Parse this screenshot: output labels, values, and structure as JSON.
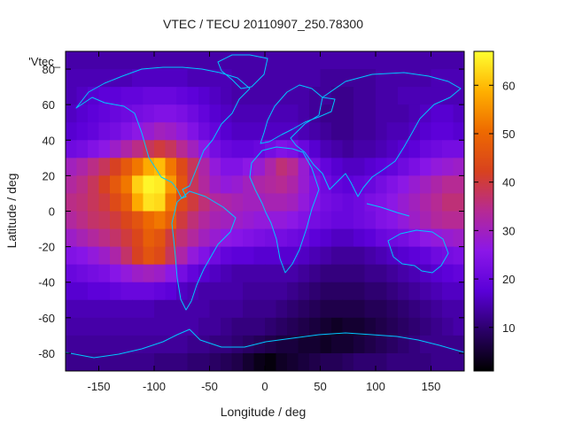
{
  "chart_data": {
    "type": "heatmap",
    "title": "VTEC / TECU 20110907_250.78300",
    "key_label": "'Vtec_",
    "xlabel": "Longitude / deg",
    "ylabel": "Latitude / deg",
    "xlim": [
      -180,
      180
    ],
    "ylim": [
      -90,
      90
    ],
    "xticks": [
      -150,
      -100,
      -50,
      0,
      50,
      100,
      150
    ],
    "yticks": [
      -80,
      -60,
      -40,
      -20,
      0,
      20,
      40,
      60,
      80
    ],
    "colorbar": {
      "range": [
        1,
        67
      ],
      "ticks": [
        10,
        20,
        30,
        40,
        50,
        60
      ],
      "colormap": [
        "#000000",
        "#2a0066",
        "#5a00d8",
        "#8b17e8",
        "#b62a94",
        "#d8421e",
        "#ee6a00",
        "#ffb000",
        "#ffff30"
      ]
    },
    "grid": {
      "lon_step": 10,
      "lat_step": 10,
      "longitudes": [
        -175,
        -165,
        -155,
        -145,
        -135,
        -125,
        -115,
        -105,
        -95,
        -85,
        -75,
        -65,
        -55,
        -45,
        -35,
        -25,
        -15,
        -5,
        5,
        15,
        25,
        35,
        45,
        55,
        65,
        75,
        85,
        95,
        105,
        115,
        125,
        135,
        145,
        155,
        165,
        175
      ],
      "latitudes": [
        85,
        75,
        65,
        55,
        45,
        35,
        25,
        15,
        5,
        -5,
        -15,
        -25,
        -35,
        -45,
        -55,
        -65,
        -75,
        -85
      ],
      "values": [
        [
          14,
          14,
          14,
          14,
          14,
          14,
          14,
          14,
          14,
          14,
          14,
          14,
          14,
          14,
          14,
          14,
          14,
          14,
          14,
          14,
          14,
          14,
          14,
          14,
          14,
          14,
          14,
          14,
          14,
          14,
          14,
          14,
          14,
          14,
          14,
          14
        ],
        [
          15,
          15,
          15,
          15,
          15,
          15,
          16,
          16,
          16,
          16,
          16,
          15,
          15,
          15,
          15,
          14,
          14,
          14,
          14,
          14,
          14,
          14,
          14,
          13,
          13,
          13,
          13,
          13,
          14,
          14,
          14,
          14,
          14,
          15,
          15,
          15
        ],
        [
          15,
          16,
          17,
          18,
          18,
          19,
          19,
          20,
          20,
          20,
          19,
          18,
          17,
          16,
          15,
          14,
          14,
          14,
          14,
          14,
          14,
          14,
          13,
          13,
          12,
          12,
          13,
          13,
          14,
          14,
          15,
          15,
          15,
          15,
          15,
          15
        ],
        [
          16,
          17,
          18,
          19,
          20,
          21,
          22,
          23,
          24,
          24,
          23,
          21,
          19,
          17,
          16,
          15,
          15,
          15,
          15,
          15,
          15,
          14,
          13,
          12,
          12,
          12,
          13,
          13,
          14,
          14,
          14,
          15,
          16,
          17,
          17,
          16
        ],
        [
          17,
          18,
          19,
          21,
          22,
          24,
          26,
          28,
          30,
          29,
          27,
          24,
          21,
          19,
          17,
          16,
          16,
          16,
          16,
          16,
          16,
          15,
          14,
          13,
          12,
          12,
          13,
          13,
          14,
          15,
          15,
          16,
          17,
          18,
          18,
          17
        ],
        [
          21,
          22,
          24,
          26,
          29,
          32,
          35,
          38,
          40,
          38,
          34,
          30,
          26,
          22,
          20,
          19,
          19,
          20,
          22,
          24,
          23,
          20,
          17,
          15,
          14,
          13,
          14,
          14,
          15,
          16,
          17,
          18,
          20,
          21,
          22,
          22
        ],
        [
          30,
          32,
          35,
          38,
          42,
          47,
          52,
          58,
          60,
          52,
          44,
          38,
          32,
          27,
          24,
          24,
          26,
          28,
          32,
          36,
          34,
          28,
          22,
          19,
          17,
          16,
          16,
          17,
          18,
          19,
          21,
          23,
          25,
          27,
          28,
          29
        ],
        [
          33,
          35,
          38,
          42,
          47,
          52,
          62,
          66,
          65,
          56,
          46,
          38,
          33,
          29,
          27,
          28,
          30,
          32,
          33,
          34,
          32,
          28,
          24,
          21,
          19,
          18,
          19,
          20,
          22,
          24,
          26,
          28,
          30,
          32,
          34,
          34
        ],
        [
          35,
          36,
          38,
          40,
          44,
          48,
          58,
          64,
          63,
          52,
          44,
          40,
          36,
          33,
          32,
          31,
          30,
          30,
          31,
          31,
          30,
          27,
          24,
          22,
          21,
          20,
          21,
          23,
          24,
          26,
          28,
          30,
          32,
          34,
          36,
          36
        ],
        [
          33,
          35,
          37,
          38,
          40,
          43,
          46,
          50,
          52,
          48,
          40,
          36,
          33,
          31,
          30,
          29,
          28,
          27,
          27,
          27,
          26,
          24,
          22,
          21,
          20,
          20,
          21,
          22,
          24,
          25,
          27,
          29,
          31,
          33,
          34,
          34
        ],
        [
          29,
          31,
          33,
          35,
          37,
          40,
          43,
          48,
          46,
          40,
          36,
          33,
          30,
          28,
          26,
          25,
          24,
          23,
          22,
          22,
          21,
          20,
          18,
          17,
          16,
          16,
          17,
          18,
          20,
          21,
          22,
          24,
          26,
          27,
          28,
          29
        ],
        [
          24,
          25,
          27,
          29,
          32,
          37,
          42,
          46,
          44,
          38,
          32,
          27,
          24,
          21,
          19,
          18,
          18,
          17,
          17,
          17,
          17,
          16,
          15,
          14,
          13,
          13,
          13,
          14,
          15,
          16,
          17,
          18,
          19,
          21,
          22,
          23
        ],
        [
          20,
          21,
          22,
          23,
          25,
          27,
          29,
          30,
          29,
          26,
          22,
          19,
          17,
          16,
          15,
          14,
          14,
          14,
          14,
          14,
          14,
          13,
          12,
          11,
          11,
          11,
          11,
          12,
          12,
          13,
          14,
          15,
          16,
          17,
          18,
          19
        ],
        [
          17,
          17,
          18,
          18,
          19,
          20,
          20,
          20,
          19,
          18,
          16,
          15,
          14,
          14,
          14,
          14,
          13,
          13,
          13,
          13,
          12,
          11,
          10,
          9,
          9,
          9,
          9,
          10,
          10,
          11,
          12,
          13,
          14,
          15,
          16,
          16
        ],
        [
          15,
          15,
          15,
          15,
          15,
          15,
          15,
          15,
          14,
          14,
          14,
          14,
          14,
          13,
          13,
          13,
          12,
          12,
          12,
          11,
          10,
          9,
          8,
          7,
          7,
          7,
          7,
          8,
          8,
          9,
          10,
          11,
          12,
          13,
          14,
          14
        ],
        [
          14,
          14,
          14,
          14,
          14,
          14,
          14,
          14,
          14,
          14,
          14,
          14,
          13,
          13,
          12,
          11,
          11,
          11,
          10,
          9,
          8,
          7,
          6,
          5,
          4,
          5,
          5,
          6,
          7,
          8,
          9,
          10,
          11,
          12,
          13,
          14
        ],
        [
          13,
          13,
          13,
          13,
          13,
          13,
          13,
          13,
          13,
          13,
          13,
          12,
          12,
          11,
          11,
          10,
          9,
          8,
          7,
          6,
          6,
          5,
          5,
          4,
          5,
          5,
          6,
          7,
          8,
          9,
          10,
          11,
          12,
          12,
          12,
          12
        ],
        [
          12,
          12,
          12,
          12,
          12,
          12,
          12,
          12,
          11,
          11,
          11,
          10,
          10,
          9,
          8,
          7,
          5,
          3,
          2,
          4,
          5,
          6,
          7,
          8,
          8,
          9,
          10,
          10,
          10,
          11,
          11,
          11,
          11,
          12,
          12,
          12
        ]
      ]
    }
  }
}
